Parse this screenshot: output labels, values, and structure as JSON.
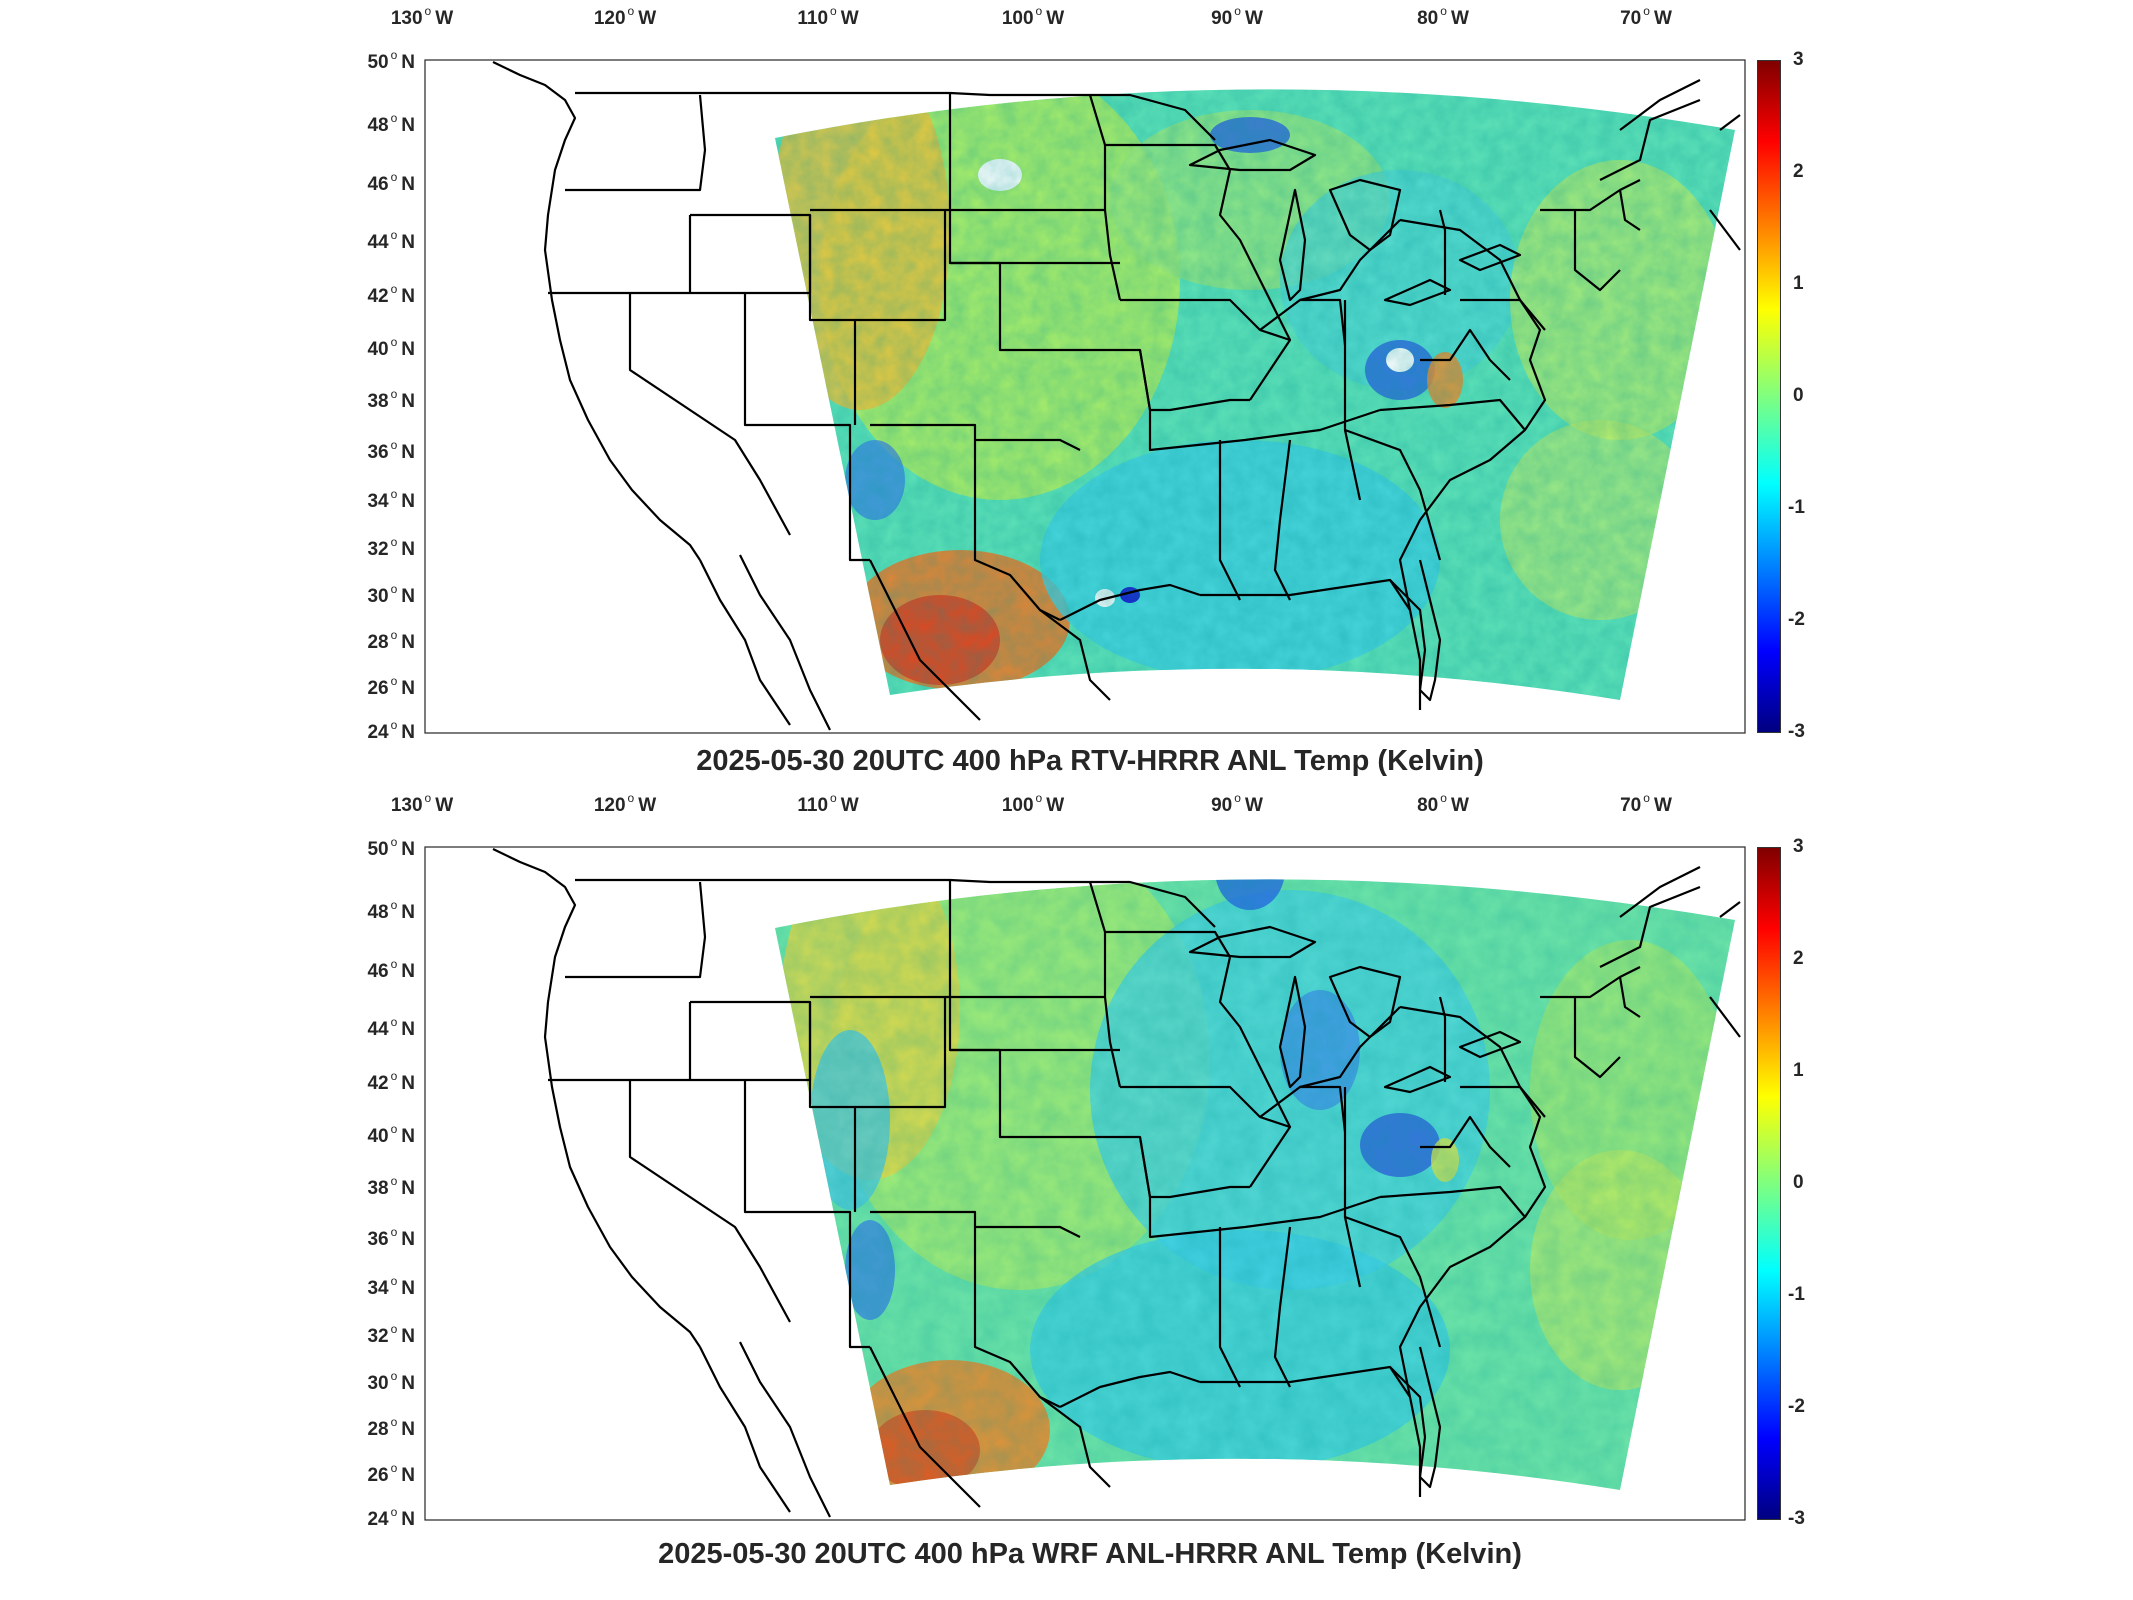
{
  "panels": [
    {
      "title": "2025-05-30 20UTC 400 hPa RTV-HRRR ANL Temp (Kelvin)",
      "field": "RTV-HRRR ANL minus HRRR ANL 400 hPa temperature",
      "notable_features": [
        "warm anomaly over Texas/Mexico border",
        "warm over Wyoming/Colorado",
        "cool spots Lake Superior and Ohio Valley",
        "white no-data patches in Dakotas and Ohio Valley"
      ]
    },
    {
      "title": "2025-05-30 20UTC 400 hPa WRF ANL-HRRR ANL Temp (Kelvin)",
      "field": "WRF ANL minus HRRR ANL 400 hPa temperature",
      "notable_features": [
        "warm anomaly over Texas/Mexico border",
        "warm over Wyoming/Colorado",
        "cool spots Lake Superior and Ohio Valley"
      ]
    }
  ],
  "lon_ticks": [
    "130",
    "120",
    "110",
    "100",
    "90",
    "80",
    "70"
  ],
  "lon_hemisphere": "W",
  "lat_ticks": [
    "50",
    "48",
    "46",
    "44",
    "42",
    "40",
    "38",
    "36",
    "34",
    "32",
    "30",
    "28",
    "26",
    "24"
  ],
  "lat_hemisphere": "N",
  "degree_symbol": "o",
  "colorbar": {
    "ticks": [
      "3",
      "2",
      "1",
      "0",
      "-1",
      "-2",
      "-3"
    ],
    "range": [
      -3,
      3
    ],
    "colormap": "jet",
    "colors": [
      "#000080",
      "#0000ff",
      "#00ffff",
      "#7fff7f",
      "#ffff00",
      "#ff0000",
      "#800000"
    ]
  }
}
